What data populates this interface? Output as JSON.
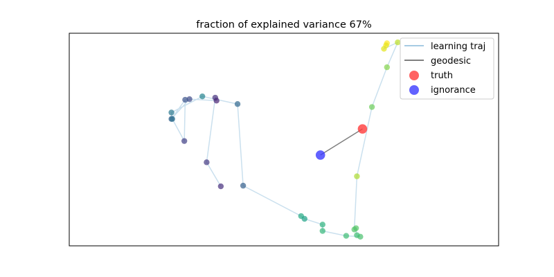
{
  "chart_data": {
    "type": "scatter",
    "title": "fraction of explained variance 67%",
    "xlabel": "",
    "ylabel": "",
    "show_ticks": false,
    "grid": false,
    "legend_placement": "upper right",
    "xlim": [
      0,
      100
    ],
    "ylim": [
      0,
      100
    ],
    "trajectory": {
      "name": "learning traj",
      "color": "#a6cbe3",
      "points": [
        {
          "x": 35.3,
          "y": 28.0,
          "c": "#472f7d"
        },
        {
          "x": 32.0,
          "y": 39.3,
          "c": "#443a83"
        },
        {
          "x": 34.0,
          "y": 69.7,
          "c": "#46307e"
        },
        {
          "x": 34.3,
          "y": 68.3,
          "c": "#482475"
        },
        {
          "x": 28.0,
          "y": 69.0,
          "c": "#3e4a89"
        },
        {
          "x": 23.8,
          "y": 59.7,
          "c": "#355f8d"
        },
        {
          "x": 27.0,
          "y": 68.7,
          "c": "#3b528b"
        },
        {
          "x": 26.8,
          "y": 49.3,
          "c": "#424086"
        },
        {
          "x": 24.0,
          "y": 59.7,
          "c": "#2d708e"
        },
        {
          "x": 23.8,
          "y": 62.7,
          "c": "#2a788e"
        },
        {
          "x": 31.0,
          "y": 70.3,
          "c": "#25838e"
        },
        {
          "x": 39.2,
          "y": 66.7,
          "c": "#31688e"
        },
        {
          "x": 40.5,
          "y": 28.3,
          "c": "#35608d"
        },
        {
          "x": 54.0,
          "y": 14.0,
          "c": "#23a983"
        },
        {
          "x": 54.8,
          "y": 12.7,
          "c": "#20a386"
        },
        {
          "x": 59.0,
          "y": 10.0,
          "c": "#2db27d"
        },
        {
          "x": 59.0,
          "y": 7.0,
          "c": "#35b779"
        },
        {
          "x": 64.5,
          "y": 4.7,
          "c": "#3dbc74"
        },
        {
          "x": 67.8,
          "y": 4.3,
          "c": "#4ac16d"
        },
        {
          "x": 67.0,
          "y": 5.0,
          "c": "#40bd72"
        },
        {
          "x": 66.8,
          "y": 8.3,
          "c": "#56c667"
        },
        {
          "x": 66.4,
          "y": 7.7,
          "c": "#52c569"
        },
        {
          "x": 67.0,
          "y": 32.7,
          "c": "#addc30"
        },
        {
          "x": 70.5,
          "y": 65.3,
          "c": "#6ccd5a"
        },
        {
          "x": 74.0,
          "y": 84.0,
          "c": "#84d44b"
        },
        {
          "x": 76.5,
          "y": 95.7,
          "c": "#bddf26"
        },
        {
          "x": 73.3,
          "y": 92.7,
          "c": "#e2e418"
        },
        {
          "x": 74.0,
          "y": 95.3,
          "c": "#fde725"
        },
        {
          "x": 73.8,
          "y": 94.3,
          "c": "#eae51a"
        }
      ]
    },
    "geodesic": {
      "name": "geodesic",
      "color": "#7f7f7f",
      "from": {
        "x": 68.3,
        "y": 55.0
      },
      "to": {
        "x": 58.5,
        "y": 42.7
      }
    },
    "markers": [
      {
        "name": "truth",
        "x": 68.3,
        "y": 55.0,
        "color": "#ff3b3b"
      },
      {
        "name": "ignorance",
        "x": 58.5,
        "y": 42.7,
        "color": "#3b3bff"
      }
    ]
  }
}
